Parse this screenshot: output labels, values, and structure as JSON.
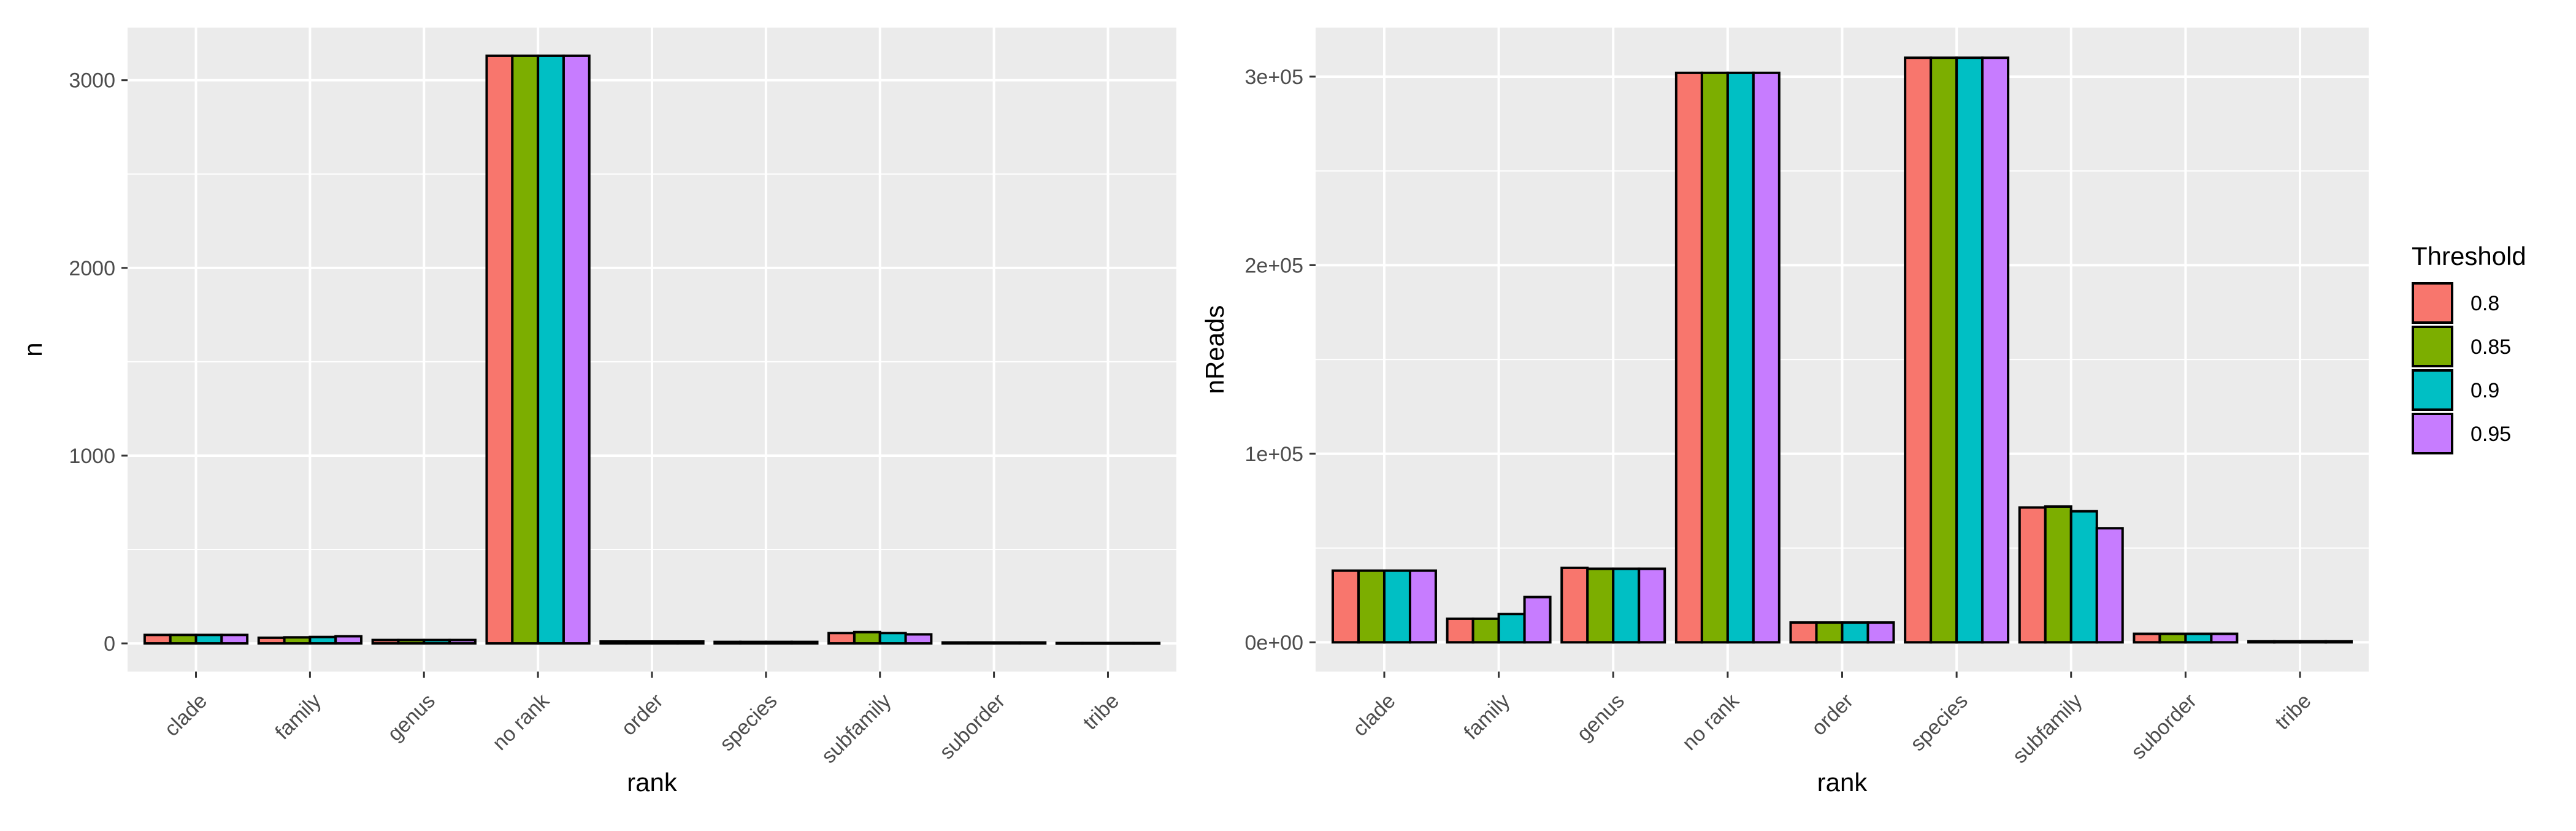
{
  "chart_data": [
    {
      "type": "bar",
      "categories": [
        "clade",
        "family",
        "genus",
        "no rank",
        "order",
        "species",
        "subfamily",
        "suborder",
        "tribe"
      ],
      "series": [
        {
          "name": "0.8",
          "values": [
            45,
            30,
            18,
            3130,
            10,
            8,
            55,
            5,
            2
          ]
        },
        {
          "name": "0.85",
          "values": [
            45,
            32,
            18,
            3130,
            10,
            8,
            60,
            5,
            2
          ]
        },
        {
          "name": "0.9",
          "values": [
            45,
            34,
            18,
            3130,
            10,
            8,
            55,
            5,
            2
          ]
        },
        {
          "name": "0.95",
          "values": [
            45,
            38,
            18,
            3130,
            10,
            8,
            48,
            5,
            2
          ]
        }
      ],
      "xlabel": "rank",
      "ylabel": "n",
      "ylim": [
        -150,
        3280
      ],
      "yticks": [
        0,
        1000,
        2000,
        3000
      ],
      "ytick_labels": [
        "0",
        "1000",
        "2000",
        "3000"
      ],
      "grid": true
    },
    {
      "type": "bar",
      "categories": [
        "clade",
        "family",
        "genus",
        "no rank",
        "order",
        "species",
        "subfamily",
        "suborder",
        "tribe"
      ],
      "series": [
        {
          "name": "0.8",
          "values": [
            38000,
            12500,
            39500,
            302000,
            10500,
            310000,
            71500,
            4500,
            500
          ]
        },
        {
          "name": "0.85",
          "values": [
            38000,
            12500,
            39000,
            302000,
            10500,
            310000,
            72000,
            4500,
            500
          ]
        },
        {
          "name": "0.9",
          "values": [
            38000,
            15000,
            39000,
            302000,
            10500,
            310000,
            69500,
            4500,
            500
          ]
        },
        {
          "name": "0.95",
          "values": [
            38000,
            24000,
            39000,
            302000,
            10500,
            310000,
            60500,
            4500,
            500
          ]
        }
      ],
      "xlabel": "rank",
      "ylabel": "nReads",
      "ylim": [
        -15500,
        326000
      ],
      "yticks": [
        0,
        100000,
        200000,
        300000
      ],
      "ytick_labels": [
        "0e+00",
        "1e+05",
        "2e+05",
        "3e+05"
      ],
      "grid": true
    }
  ],
  "legend": {
    "title": "Threshold",
    "placement": "right",
    "items": [
      {
        "label": "0.8",
        "color": "#F8766D"
      },
      {
        "label": "0.85",
        "color": "#7CAE00"
      },
      {
        "label": "0.9",
        "color": "#00BFC4"
      },
      {
        "label": "0.95",
        "color": "#C77CFF"
      }
    ]
  }
}
